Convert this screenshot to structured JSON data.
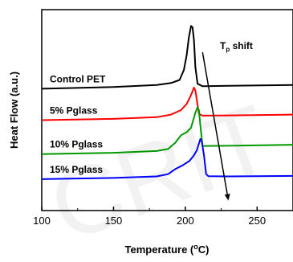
{
  "chart_data": {
    "type": "line",
    "xlabel": "Temperature (",
    "xlabel_unit_sup": "o",
    "xlabel_unit_end": "C)",
    "ylabel": "Heat Flow (a.u.)",
    "xlim": [
      100,
      275
    ],
    "xticks": [
      100,
      150,
      200,
      250
    ],
    "yticks_shown": false,
    "grid": false,
    "annotation": {
      "text_main": "T",
      "text_sub": "p",
      "text_end": " shift",
      "arrow_from": [
        212,
        6.3
      ],
      "arrow_to": [
        230,
        0.4
      ]
    },
    "series": [
      {
        "name": "Control PET",
        "color": "#000000",
        "points": [
          [
            100,
            4.85
          ],
          [
            150,
            4.92
          ],
          [
            180,
            5.0
          ],
          [
            190,
            5.08
          ],
          [
            196,
            5.2
          ],
          [
            199,
            5.6
          ],
          [
            201,
            6.2
          ],
          [
            202.5,
            6.9
          ],
          [
            204,
            7.35
          ],
          [
            205,
            7.3
          ],
          [
            206,
            6.8
          ],
          [
            207,
            5.7
          ],
          [
            208.5,
            5.05
          ],
          [
            212,
            4.95
          ],
          [
            230,
            4.97
          ],
          [
            275,
            5.0
          ]
        ]
      },
      {
        "name": "5% Pglass",
        "color": "#ff0000",
        "points": [
          [
            100,
            3.6
          ],
          [
            150,
            3.65
          ],
          [
            180,
            3.72
          ],
          [
            190,
            3.82
          ],
          [
            197,
            4.0
          ],
          [
            201,
            4.25
          ],
          [
            204,
            4.6
          ],
          [
            206,
            4.9
          ],
          [
            207,
            4.78
          ],
          [
            208,
            4.4
          ],
          [
            209.5,
            3.85
          ],
          [
            212,
            3.78
          ],
          [
            230,
            3.79
          ],
          [
            275,
            3.82
          ]
        ]
      },
      {
        "name": "10% Pglass",
        "color": "#009900",
        "points": [
          [
            100,
            2.25
          ],
          [
            150,
            2.3
          ],
          [
            180,
            2.37
          ],
          [
            188,
            2.45
          ],
          [
            193,
            2.7
          ],
          [
            197,
            3.0
          ],
          [
            201,
            3.12
          ],
          [
            204,
            3.3
          ],
          [
            207,
            3.9
          ],
          [
            208.5,
            4.12
          ],
          [
            209.5,
            4.0
          ],
          [
            210.5,
            3.4
          ],
          [
            212,
            2.57
          ],
          [
            230,
            2.58
          ],
          [
            275,
            2.62
          ]
        ]
      },
      {
        "name": "15% Pglass",
        "color": "#0000ff",
        "points": [
          [
            100,
            1.25
          ],
          [
            150,
            1.3
          ],
          [
            180,
            1.36
          ],
          [
            188,
            1.45
          ],
          [
            193,
            1.65
          ],
          [
            198,
            1.8
          ],
          [
            203,
            1.98
          ],
          [
            206,
            2.2
          ],
          [
            208,
            2.4
          ],
          [
            210.5,
            2.85
          ],
          [
            211.5,
            2.75
          ],
          [
            213,
            2.2
          ],
          [
            214.5,
            1.45
          ],
          [
            216,
            1.37
          ],
          [
            230,
            1.36
          ],
          [
            275,
            1.38
          ]
        ]
      }
    ]
  }
}
